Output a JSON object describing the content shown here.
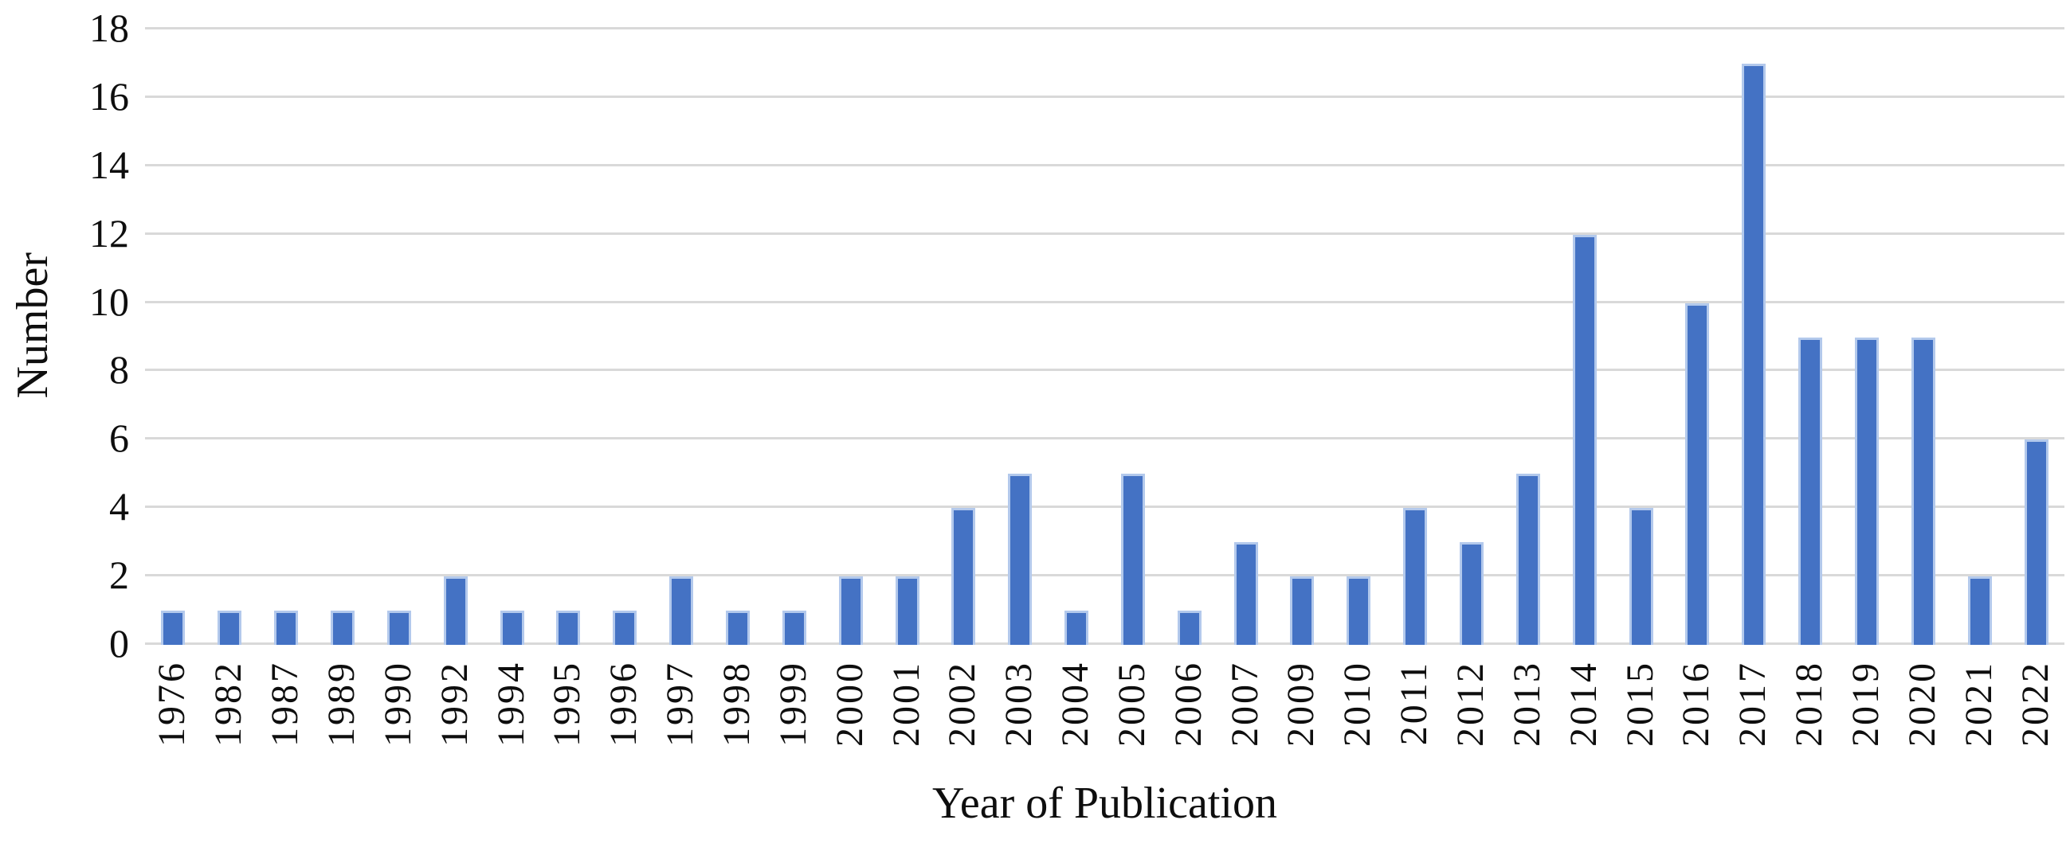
{
  "chart_data": {
    "type": "bar",
    "title": "",
    "xlabel": "Year of Publication",
    "ylabel": "Number",
    "categories": [
      "1976",
      "1982",
      "1987",
      "1989",
      "1990",
      "1992",
      "1994",
      "1995",
      "1996",
      "1997",
      "1998",
      "1999",
      "2000",
      "2001",
      "2002",
      "2003",
      "2004",
      "2005",
      "2006",
      "2007",
      "2009",
      "2010",
      "2011",
      "2012",
      "2013",
      "2014",
      "2015",
      "2016",
      "2017",
      "2018",
      "2019",
      "2020",
      "2021",
      "2022"
    ],
    "values": [
      1,
      1,
      1,
      1,
      1,
      2,
      1,
      1,
      1,
      2,
      1,
      1,
      2,
      2,
      4,
      5,
      1,
      5,
      1,
      3,
      2,
      2,
      4,
      3,
      5,
      12,
      4,
      10,
      17,
      9,
      9,
      9,
      2,
      6
    ],
    "yticks": [
      0,
      2,
      4,
      6,
      8,
      10,
      12,
      14,
      16,
      18
    ],
    "ylim": [
      0,
      18
    ],
    "grid": "horizontal-only",
    "legend": "none",
    "colors": {
      "bar_fill": "#4472c4",
      "bar_border": "#b3c9ec",
      "gridline": "#d9d9d9",
      "text": "#0e0e0e",
      "background": "#ffffff"
    }
  }
}
